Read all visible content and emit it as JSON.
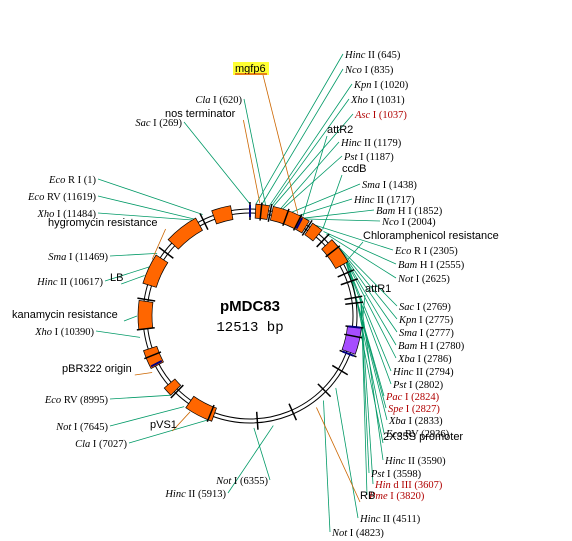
{
  "plasmid": {
    "name": "pMDC83",
    "size": "12513 bp",
    "total_bp": 12513
  },
  "colors": {
    "feature": "#ff6600",
    "feature_purple": "#a64dff",
    "line_teal": "#009966",
    "line_orange": "#cc6600",
    "site_blue": "#000080",
    "enzyme_red": "#b00000",
    "highlight": "#ffff33"
  },
  "sites": [
    {
      "italic": "Hinc",
      "rest": " II (645)",
      "pos": 645
    },
    {
      "italic": "Nco",
      "rest": " I (835)",
      "pos": 835
    },
    {
      "italic": "Kpn",
      "rest": " I (1020)",
      "pos": 1020
    },
    {
      "italic": "Xho",
      "rest": " I (1031)",
      "pos": 1031
    },
    {
      "italic": "Asc",
      "rest": " I (1037)",
      "pos": 1037,
      "red": true
    },
    {
      "italic": "Hinc",
      "rest": " II (1179)",
      "pos": 1179
    },
    {
      "italic": "Pst",
      "rest": " I (1187)",
      "pos": 1187
    },
    {
      "italic": "Sma",
      "rest": " I (1438)",
      "pos": 1438
    },
    {
      "italic": "Hinc",
      "rest": " II (1717)",
      "pos": 1717
    },
    {
      "italic": "Bam",
      "rest": " H I (1852)",
      "pos": 1852
    },
    {
      "italic": "Nco",
      "rest": " I (2004)",
      "pos": 2004
    },
    {
      "italic": "Eco",
      "rest": " R I (2305)",
      "pos": 2305
    },
    {
      "italic": "Bam",
      "rest": " H I (2555)",
      "pos": 2555
    },
    {
      "italic": "Not",
      "rest": " I (2625)",
      "pos": 2625
    },
    {
      "italic": "Sac",
      "rest": " I (2769)",
      "pos": 2769
    },
    {
      "italic": "Kpn",
      "rest": " I (2775)",
      "pos": 2775
    },
    {
      "italic": "Sma",
      "rest": " I (2777)",
      "pos": 2777
    },
    {
      "italic": "Bam",
      "rest": " H I (2780)",
      "pos": 2780
    },
    {
      "italic": "Xba",
      "rest": " I (2786)",
      "pos": 2786
    },
    {
      "italic": "Hinc",
      "rest": " II (2794)",
      "pos": 2794
    },
    {
      "italic": "Pst",
      "rest": " I (2802)",
      "pos": 2802
    },
    {
      "italic": "Pac",
      "rest": " I (2824)",
      "pos": 2824,
      "red": true
    },
    {
      "italic": "Spe",
      "rest": " I (2827)",
      "pos": 2827,
      "red": true
    },
    {
      "italic": "Xba",
      "rest": " I (2833)",
      "pos": 2833
    },
    {
      "italic": "Eco",
      "rest": " RV (2936)",
      "pos": 2936
    },
    {
      "italic": "Hinc",
      "rest": " II (3590)",
      "pos": 3590
    },
    {
      "italic": "Pst",
      "rest": " I (3598)",
      "pos": 3598
    },
    {
      "italic": "Hin",
      "rest": " d III (3607)",
      "pos": 3607,
      "red": true
    },
    {
      "italic": "Pme",
      "rest": " I (3820)",
      "pos": 3820,
      "red": true
    },
    {
      "italic": "Hinc",
      "rest": " II (4511)",
      "pos": 4511
    },
    {
      "italic": "Not",
      "rest": " I (4823)",
      "pos": 4823
    },
    {
      "italic": "Hinc",
      "rest": " II (5913)",
      "pos": 5913
    },
    {
      "italic": "Not",
      "rest": " I (6355)",
      "pos": 6355
    },
    {
      "italic": "Cla",
      "rest": " I (7027)",
      "pos": 7027
    },
    {
      "italic": "Not",
      "rest": " I (7645)",
      "pos": 7645
    },
    {
      "italic": "Eco",
      "rest": " RV (8995)",
      "pos": 8995
    },
    {
      "italic": "Xho",
      "rest": " I (10390)",
      "pos": 10390
    },
    {
      "italic": "Hinc",
      "rest": " II (10617)",
      "pos": 10617
    },
    {
      "italic": "Sma",
      "rest": " I (11469)",
      "pos": 11469
    },
    {
      "italic": "Xho",
      "rest": " I (11484)",
      "pos": 11484
    },
    {
      "italic": "Eco",
      "rest": " RV (11619)",
      "pos": 11619
    },
    {
      "italic": "Eco",
      "rest": " R I (1)",
      "pos": 1
    },
    {
      "italic": "Sac",
      "rest": " I (269)",
      "pos": 269
    },
    {
      "italic": "Cla",
      "rest": " I (620)",
      "pos": 620
    }
  ],
  "features": [
    {
      "label": "mgfp6",
      "highlight": true
    },
    {
      "label": "nos terminator"
    },
    {
      "label": "attR2"
    },
    {
      "label": "ccdB"
    },
    {
      "label": "Chloramphenicol resistance"
    },
    {
      "label": "attR1"
    },
    {
      "label": "2X35S promoter"
    },
    {
      "label": "RB"
    },
    {
      "label": "hygromycin resistance"
    },
    {
      "label": "LB"
    },
    {
      "label": "kanamycin resistance"
    },
    {
      "label": "pBR322 origin"
    },
    {
      "label": "pVS1"
    }
  ]
}
